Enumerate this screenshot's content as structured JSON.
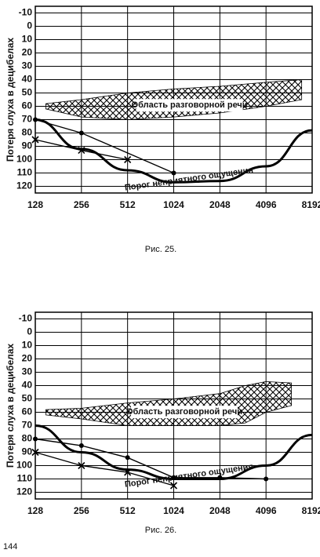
{
  "chart_data": [
    {
      "type": "line",
      "caption": "Рис. 25.",
      "y_label": "Потеря слуха в децибелах",
      "xlog": true,
      "xlim": [
        128,
        8192
      ],
      "xticks": [
        128,
        256,
        512,
        1024,
        2048,
        4096,
        8192
      ],
      "ylim": [
        -15,
        125
      ],
      "y_reversed": true,
      "yticks": [
        -10,
        0,
        10,
        20,
        30,
        40,
        50,
        60,
        70,
        80,
        90,
        100,
        110,
        120
      ],
      "grid": true,
      "series": [
        {
          "name": "Область разговорной речи",
          "type": "area",
          "color": "#000000",
          "x": [
            150,
            256,
            512,
            1024,
            2048,
            4096,
            7000
          ],
          "values": [
            58,
            55,
            50,
            47,
            45,
            42,
            40
          ],
          "values_low": [
            62,
            68,
            70,
            68,
            65,
            60,
            55
          ]
        },
        {
          "name": "Порог неприятного ощущения",
          "type": "curve",
          "color": "#000000",
          "x": [
            128,
            256,
            512,
            1024,
            2048,
            4096,
            8192
          ],
          "values": [
            70,
            92,
            108,
            117,
            116,
            105,
            78
          ]
        },
        {
          "type": "points",
          "marker": "dot",
          "color": "#000000",
          "x": [
            128,
            256,
            1024
          ],
          "values": [
            70,
            80,
            110
          ]
        },
        {
          "type": "points",
          "marker": "cross",
          "color": "#000000",
          "x": [
            128,
            256,
            512
          ],
          "values": [
            85,
            93,
            100
          ]
        }
      ]
    },
    {
      "type": "line",
      "caption": "Рис. 26.",
      "y_label": "Потеря слуха в децибелах",
      "xlog": true,
      "xlim": [
        128,
        8192
      ],
      "xticks": [
        128,
        256,
        512,
        1024,
        2048,
        4096,
        8192
      ],
      "ylim": [
        -15,
        125
      ],
      "y_reversed": true,
      "yticks": [
        -10,
        0,
        10,
        20,
        30,
        40,
        50,
        60,
        70,
        80,
        90,
        100,
        110,
        120
      ],
      "grid": true,
      "series": [
        {
          "name": "Область разговорной речи",
          "type": "area",
          "color": "#000000",
          "x": [
            150,
            256,
            512,
            1024,
            2048,
            3000,
            4096,
            6000
          ],
          "values": [
            58,
            57,
            53,
            50,
            46,
            40,
            37,
            38
          ],
          "values_low": [
            62,
            65,
            70,
            70,
            70,
            68,
            60,
            55
          ]
        },
        {
          "name": "Порог неприятного ощущения",
          "type": "curve",
          "color": "#000000",
          "x": [
            128,
            256,
            512,
            1024,
            2048,
            4096,
            8192
          ],
          "values": [
            70,
            90,
            103,
            110,
            110,
            100,
            77
          ]
        },
        {
          "type": "points",
          "marker": "dot",
          "color": "#000000",
          "x": [
            128,
            256,
            512,
            1024,
            2048,
            4096
          ],
          "values": [
            80,
            85,
            94,
            109,
            109,
            110
          ]
        },
        {
          "type": "points",
          "marker": "cross",
          "color": "#000000",
          "x": [
            128,
            256,
            512,
            1024
          ],
          "values": [
            90,
            100,
            105,
            115
          ]
        }
      ]
    }
  ],
  "page_number": "144"
}
